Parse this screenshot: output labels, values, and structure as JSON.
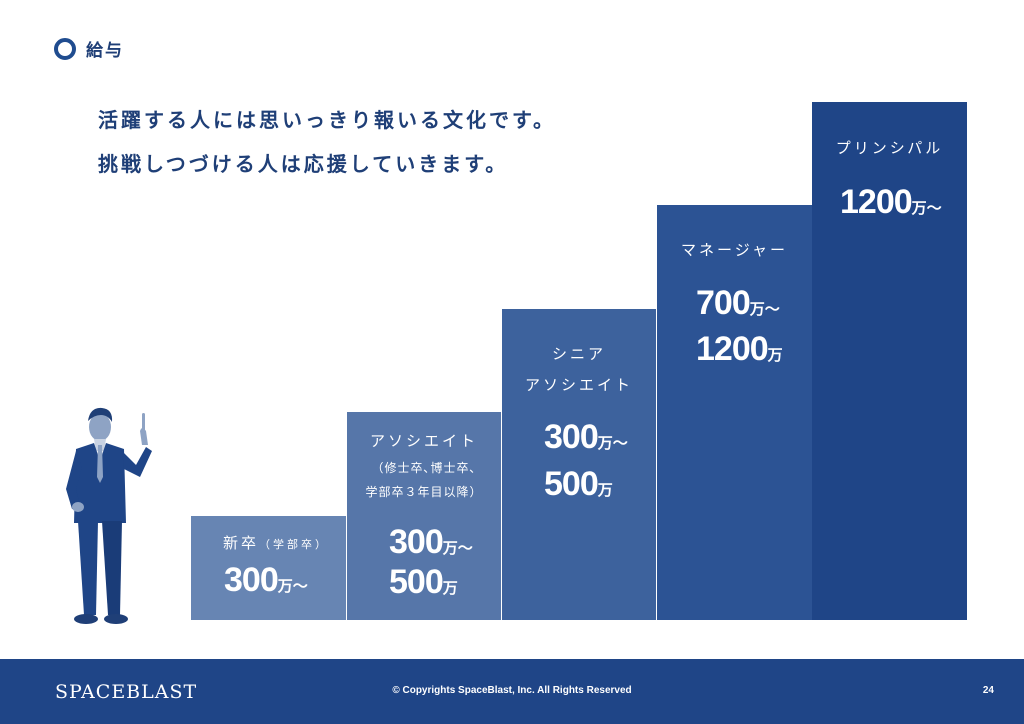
{
  "header": {
    "title": "給与"
  },
  "lead": {
    "line1": "活躍する人には思いっきり報いる文化です。",
    "line2": "挑戦しつづける人は応援していきます。"
  },
  "steps": [
    {
      "name": "新卒",
      "note": "（学部卒）",
      "salary_from": "300",
      "unit_from": "万〜"
    },
    {
      "name": "アソシエイト",
      "note_line1": "（修士卒､博士卒､",
      "note_line2": "学部卒３年目以降）",
      "salary_from": "300",
      "unit_from": "万〜",
      "salary_to": "500",
      "unit_to": "万"
    },
    {
      "name_line1": "シニア",
      "name_line2": "アソシエイト",
      "salary_from": "300",
      "unit_from": "万〜",
      "salary_to": "500",
      "unit_to": "万"
    },
    {
      "name": "マネージャー",
      "salary_from": "700",
      "unit_from": "万〜",
      "salary_to": "1200",
      "unit_to": "万"
    },
    {
      "name": "プリンシパル",
      "salary_from": "1200",
      "unit_from": "万〜"
    }
  ],
  "footer": {
    "logo": "SPACEBLAST",
    "copyright": "© Copyrights SpaceBlast, Inc. All Rights Reserved",
    "page": "24"
  },
  "colors": {
    "primary": "#1f4587",
    "step1": "#6785b3",
    "step2": "#5676a9",
    "step3": "#3d629d",
    "step4": "#2c5394",
    "step5": "#1f4587"
  }
}
